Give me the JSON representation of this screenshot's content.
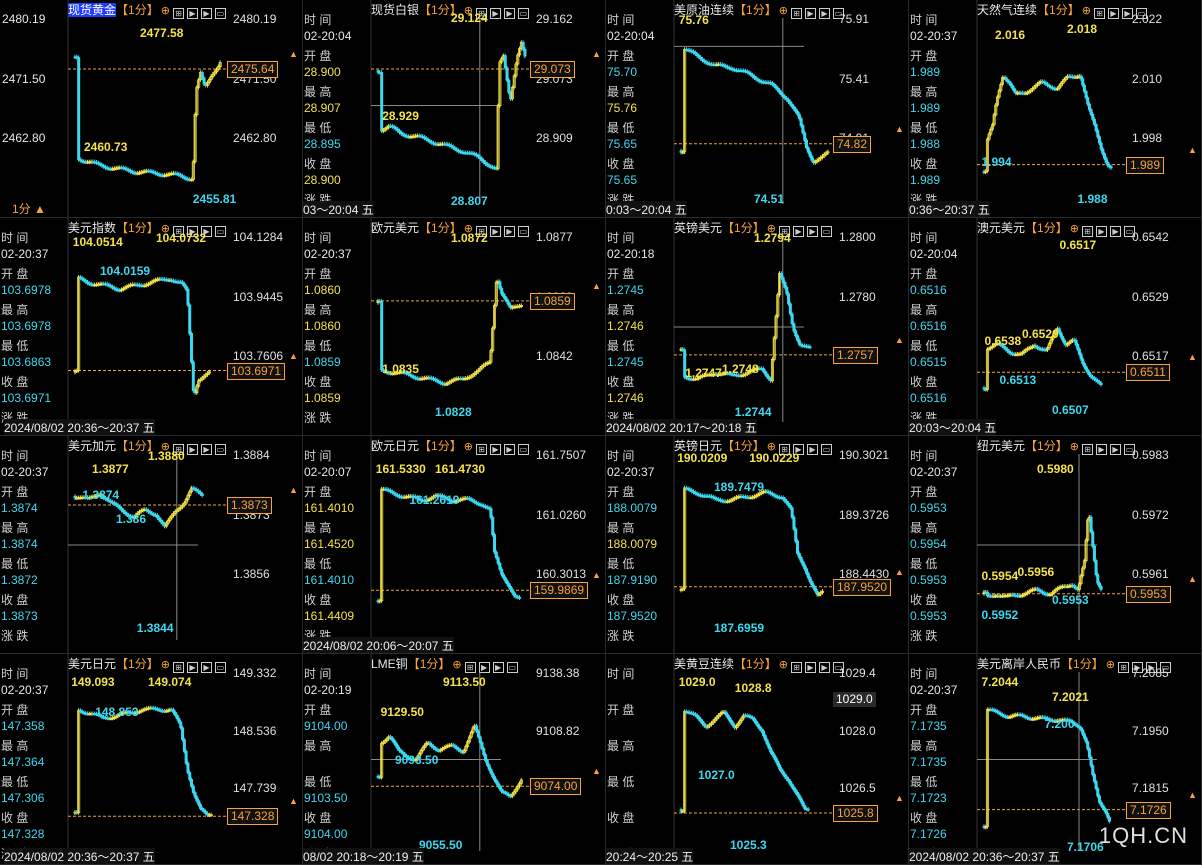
{
  "labels": {
    "time": "时 间",
    "open": "开 盘",
    "high": "最 高",
    "low": "最 低",
    "close": "收 盘",
    "change": "涨 跌"
  },
  "period": "【1分】",
  "watermark": "1QH.CN",
  "footer_first": "1分 ▲",
  "panels": [
    {
      "name": "现货黄金",
      "left": null,
      "axis": [
        "2480.19",
        "2471.50",
        "2462.80"
      ],
      "box": "2475.64",
      "marks": [
        {
          "t": "2477.58",
          "c": "y"
        },
        {
          "t": "2460.73",
          "c": "y"
        },
        {
          "t": "2455.81",
          "c": "c"
        }
      ],
      "left_axis": [
        "2480.19",
        "2471.50",
        "2462.80"
      ],
      "range": ""
    },
    {
      "name": "现货白银",
      "left": [
        "02-20:04",
        "28.900",
        "28.907",
        "28.895",
        "28.900"
      ],
      "axis": [
        "29.162",
        "29.073",
        "28.909"
      ],
      "box": "29.073",
      "marks": [
        {
          "t": "29.124",
          "c": "y"
        },
        {
          "t": "28.929",
          "c": "y"
        },
        {
          "t": "28.807",
          "c": "c"
        }
      ],
      "range": "03～20:04 五"
    },
    {
      "name": "美原油连续",
      "left": [
        "02-20:04",
        "75.70",
        "75.76",
        "75.65",
        "75.65"
      ],
      "axis": [
        "75.91",
        "75.41",
        "74.91"
      ],
      "box": "74.82",
      "marks": [
        {
          "t": "75.76",
          "c": "y"
        },
        {
          "t": "74.51",
          "c": "c"
        }
      ],
      "range": "0:03～20:04 五"
    },
    {
      "name": "天然气连续",
      "left": [
        "02-20:37",
        "1.989",
        "1.989",
        "1.988",
        "1.989"
      ],
      "axis": [
        "2.022",
        "2.010",
        "1.998"
      ],
      "box": "1.989",
      "marks": [
        {
          "t": "2.016",
          "c": "y"
        },
        {
          "t": "2.018",
          "c": "y"
        },
        {
          "t": "1.994",
          "c": "c"
        },
        {
          "t": "1.988",
          "c": "c"
        }
      ],
      "range": "0:36～20:37 五"
    },
    {
      "name": "美元指数",
      "left": [
        "02-20:37",
        "103.6978",
        "103.6978",
        "103.6863",
        "103.6971"
      ],
      "axis": [
        "104.1284",
        "103.9445",
        "103.7606"
      ],
      "box": "103.6971",
      "marks": [
        {
          "t": "104.0514",
          "c": "y"
        },
        {
          "t": "104.0732",
          "c": "y"
        },
        {
          "t": "104.0159",
          "c": "c"
        }
      ],
      "range": "2024/08/02 20:36～20:37 五"
    },
    {
      "name": "欧元美元",
      "left": [
        "02-20:37",
        "1.0860",
        "1.0860",
        "1.0859",
        "1.0859"
      ],
      "axis": [
        "1.0877",
        "1.0860",
        "1.0842"
      ],
      "box": "1.0859",
      "marks": [
        {
          "t": "1.0872",
          "c": "y"
        },
        {
          "t": "1.0835",
          "c": "y"
        },
        {
          "t": "1.0828",
          "c": "c"
        }
      ],
      "range": ""
    },
    {
      "name": "英镑美元",
      "left": [
        "02-20:18",
        "1.2745",
        "1.2746",
        "1.2745",
        "1.2746"
      ],
      "axis": [
        "1.2800",
        "1.2780",
        "1.2759"
      ],
      "box": "1.2757",
      "marks": [
        {
          "t": "1.2794",
          "c": "y"
        },
        {
          "t": "1.2747",
          "c": "y"
        },
        {
          "t": "1.2748",
          "c": "y"
        },
        {
          "t": "1.2744",
          "c": "c"
        }
      ],
      "range": "2024/08/02 20:17～20:18 五"
    },
    {
      "name": "澳元美元",
      "left": [
        "02-20:04",
        "0.6516",
        "0.6516",
        "0.6515",
        "0.6516"
      ],
      "axis": [
        "0.6542",
        "0.6529",
        "0.6517"
      ],
      "box": "0.6511",
      "marks": [
        {
          "t": "0.6538",
          "c": "y"
        },
        {
          "t": "0.6517",
          "c": "y"
        },
        {
          "t": "0.6520",
          "c": "y"
        },
        {
          "t": "0.6513",
          "c": "c"
        },
        {
          "t": "0.6507",
          "c": "c"
        }
      ],
      "range": "20:03～20:04 五"
    },
    {
      "name": "美元加元",
      "left": [
        "02-20:37",
        "1.3874",
        "1.3874",
        "1.3872",
        "1.3873"
      ],
      "axis": [
        "1.3884",
        "1.3873",
        "1.3856"
      ],
      "box": "1.3873",
      "marks": [
        {
          "t": "1.3877",
          "c": "y"
        },
        {
          "t": "1.3880",
          "c": "y"
        },
        {
          "t": "1.3874",
          "c": "c"
        },
        {
          "t": "1.386",
          "c": "c"
        },
        {
          "t": "1.3844",
          "c": "c"
        }
      ],
      "range": ""
    },
    {
      "name": "欧元日元",
      "left": [
        "02-20:07",
        "161.4010",
        "161.4520",
        "161.4010",
        "161.4409"
      ],
      "axis": [
        "161.7507",
        "161.0260",
        "160.3013"
      ],
      "box": "159.9869",
      "marks": [
        {
          "t": "161.5330",
          "c": "y"
        },
        {
          "t": "161.4730",
          "c": "y"
        },
        {
          "t": "161.2619",
          "c": "c"
        }
      ],
      "range": "2024/08/02 20:06～20:07 五"
    },
    {
      "name": "英镑日元",
      "left": [
        "02-20:37",
        "188.0079",
        "188.0079",
        "187.9190",
        "187.9520"
      ],
      "axis": [
        "190.3021",
        "189.3726",
        "188.4430"
      ],
      "box": "187.9520",
      "marks": [
        {
          "t": "190.0209",
          "c": "y"
        },
        {
          "t": "190.0229",
          "c": "y"
        },
        {
          "t": "189.7479",
          "c": "c"
        },
        {
          "t": "187.6959",
          "c": "c"
        }
      ],
      "range": ""
    },
    {
      "name": "纽元美元",
      "left": [
        "02-20:37",
        "0.5953",
        "0.5954",
        "0.5953",
        "0.5953"
      ],
      "axis": [
        "0.5983",
        "0.5972",
        "0.5961"
      ],
      "box": "0.5953",
      "marks": [
        {
          "t": "0.5980",
          "c": "y"
        },
        {
          "t": "0.5954",
          "c": "y"
        },
        {
          "t": "0.5956",
          "c": "y"
        },
        {
          "t": "0.5952",
          "c": "c"
        },
        {
          "t": "0.5953",
          "c": "c"
        }
      ],
      "range": ""
    },
    {
      "name": "美元日元",
      "left": [
        "02-20:37",
        "147.358",
        "147.364",
        "147.306",
        "147.328"
      ],
      "axis": [
        "149.332",
        "148.536",
        "147.739"
      ],
      "box": "147.328",
      "marks": [
        {
          "t": "149.093",
          "c": "y"
        },
        {
          "t": "149.074",
          "c": "y"
        },
        {
          "t": "148.853",
          "c": "c"
        }
      ],
      "range": "2024/08/02 20:36～20:37 五"
    },
    {
      "name": "LME铜",
      "left": [
        "02-20:19",
        "9104.00",
        "",
        "9103.50",
        "9104.00"
      ],
      "axis": [
        "9138.38",
        "9108.82",
        "9079.26"
      ],
      "box": "9074.00",
      "marks": [
        {
          "t": "9129.50",
          "c": "y"
        },
        {
          "t": "9113.50",
          "c": "y"
        },
        {
          "t": "9093.50",
          "c": "c"
        },
        {
          "t": "9055.50",
          "c": "c"
        }
      ],
      "range": "08/02 20:18～20:19 五"
    },
    {
      "name": "美黄豆连续",
      "left": [
        "",
        "",
        "",
        "",
        ""
      ],
      "axis": [
        "1029.4",
        "1028.0",
        "1026.5"
      ],
      "box": "1025.8",
      "box2": "1029.0",
      "marks": [
        {
          "t": "1029.0",
          "c": "y"
        },
        {
          "t": "1028.8",
          "c": "y"
        },
        {
          "t": "1027.0",
          "c": "c"
        },
        {
          "t": "1025.3",
          "c": "c"
        }
      ],
      "range": "20:24～20:25 五"
    },
    {
      "name": "美元离岸人民币",
      "left": [
        "02-20:37",
        "7.1735",
        "7.1735",
        "7.1723",
        "7.1726"
      ],
      "axis": [
        "7.2085",
        "7.1950",
        "7.1815"
      ],
      "box": "7.1726",
      "marks": [
        {
          "t": "7.2044",
          "c": "y"
        },
        {
          "t": "7.2021",
          "c": "y"
        },
        {
          "t": "7.200",
          "c": "c"
        },
        {
          "t": "7.1706",
          "c": "c"
        }
      ],
      "range": "2024/08/02 20:36～20:37 五"
    }
  ]
}
